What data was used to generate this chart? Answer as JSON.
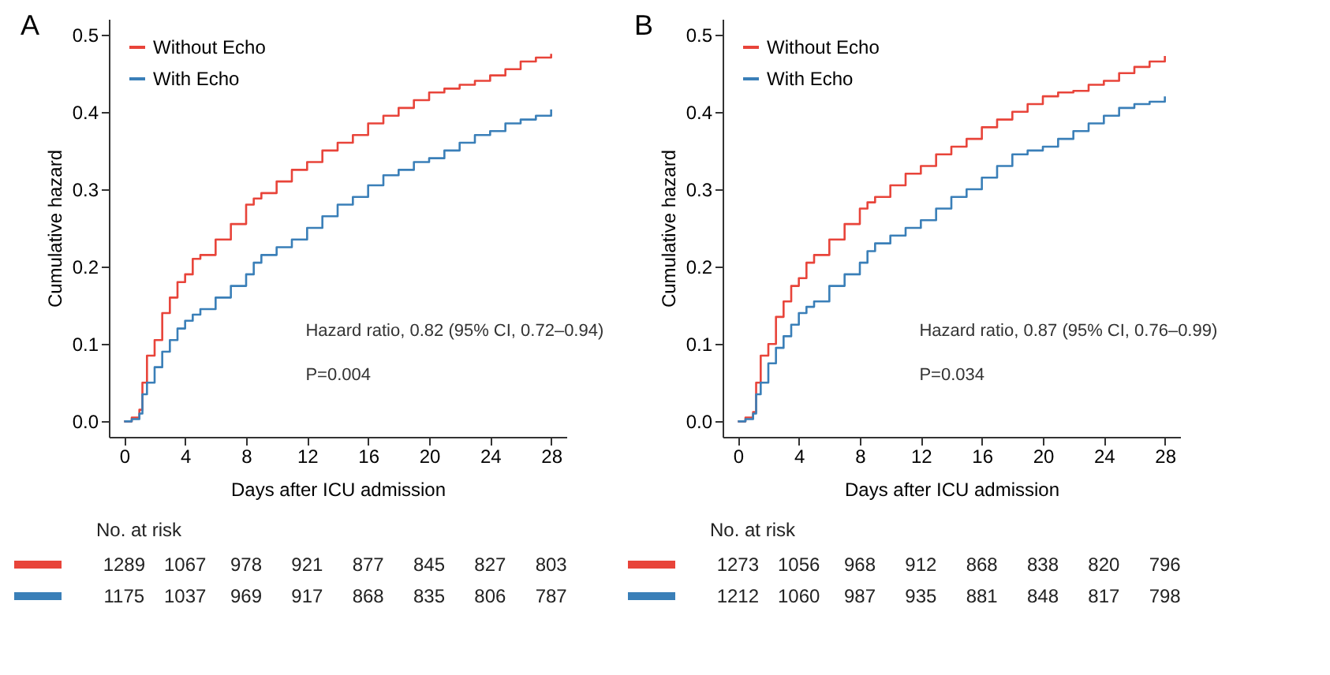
{
  "chart_data": [
    {
      "type": "step",
      "title": "A",
      "xlabel": "Days after ICU admission",
      "ylabel": "Cumulative hazard",
      "xlim": [
        -1,
        29
      ],
      "ylim": [
        -0.02,
        0.52
      ],
      "xticks": [
        0,
        4,
        8,
        12,
        16,
        20,
        24,
        28
      ],
      "yticks": [
        {
          "value": 0,
          "label": "0.0"
        },
        0.1,
        0.2,
        0.3,
        0.4,
        0.5
      ],
      "grid": false,
      "legend": "top left",
      "annotations": [
        "Hazard ratio, 0.82 (95% CI, 0.72–0.94)",
        "P=0.004",
        "No. at risk",
        "1289 1067 978 921 877 845 827 803",
        "1175 1037 969 917 868 835 806 787"
      ],
      "x": [
        0,
        0.5,
        1,
        1.2,
        1.5,
        2,
        2.5,
        3,
        3.5,
        4,
        4.5,
        5,
        6,
        7,
        8,
        8.5,
        9,
        10,
        11,
        12,
        13,
        14,
        15,
        16,
        17,
        18,
        19,
        20,
        21,
        22,
        23,
        24,
        25,
        26,
        27,
        28
      ],
      "series": [
        {
          "name": "Without Echo",
          "color": "#e8443a",
          "values": [
            0,
            0.005,
            0.015,
            0.05,
            0.085,
            0.105,
            0.14,
            0.16,
            0.18,
            0.19,
            0.21,
            0.215,
            0.235,
            0.255,
            0.28,
            0.288,
            0.295,
            0.31,
            0.325,
            0.335,
            0.35,
            0.36,
            0.37,
            0.385,
            0.395,
            0.405,
            0.415,
            0.425,
            0.43,
            0.435,
            0.44,
            0.447,
            0.455,
            0.465,
            0.47,
            0.475
          ]
        },
        {
          "name": "With Echo",
          "color": "#3a7fb8",
          "values": [
            0,
            0.003,
            0.01,
            0.035,
            0.05,
            0.07,
            0.09,
            0.105,
            0.12,
            0.13,
            0.138,
            0.145,
            0.16,
            0.175,
            0.19,
            0.205,
            0.215,
            0.225,
            0.235,
            0.25,
            0.265,
            0.28,
            0.29,
            0.305,
            0.318,
            0.325,
            0.335,
            0.34,
            0.35,
            0.36,
            0.37,
            0.375,
            0.385,
            0.39,
            0.395,
            0.403
          ]
        }
      ]
    },
    {
      "type": "step",
      "title": "B",
      "xlabel": "Days after ICU admission",
      "ylabel": "Cumulative hazard",
      "xlim": [
        -1,
        29
      ],
      "ylim": [
        -0.02,
        0.52
      ],
      "xticks": [
        0,
        4,
        8,
        12,
        16,
        20,
        24,
        28
      ],
      "yticks": [
        {
          "value": 0,
          "label": "0.0"
        },
        0.1,
        0.2,
        0.3,
        0.4,
        0.5
      ],
      "grid": false,
      "legend": "top left",
      "annotations": [
        "Hazard ratio, 0.87 (95% CI, 0.76–0.99)",
        "P=0.034",
        "No. at risk",
        "1273 1056 968 912 868 838 820 796",
        "1212 1060 987 935 881 848 817 798"
      ],
      "x": [
        0,
        0.5,
        1,
        1.2,
        1.5,
        2,
        2.5,
        3,
        3.5,
        4,
        4.5,
        5,
        6,
        7,
        8,
        8.5,
        9,
        10,
        11,
        12,
        13,
        14,
        15,
        16,
        17,
        18,
        19,
        20,
        21,
        22,
        23,
        24,
        25,
        26,
        27,
        28
      ],
      "series": [
        {
          "name": "Without Echo",
          "color": "#e8443a",
          "values": [
            0,
            0.005,
            0.012,
            0.05,
            0.085,
            0.1,
            0.135,
            0.155,
            0.175,
            0.185,
            0.205,
            0.215,
            0.235,
            0.255,
            0.275,
            0.283,
            0.29,
            0.305,
            0.32,
            0.33,
            0.345,
            0.355,
            0.365,
            0.38,
            0.39,
            0.4,
            0.41,
            0.42,
            0.425,
            0.427,
            0.435,
            0.44,
            0.45,
            0.458,
            0.465,
            0.472
          ]
        },
        {
          "name": "With Echo",
          "color": "#3a7fb8",
          "values": [
            0,
            0.003,
            0.01,
            0.035,
            0.05,
            0.075,
            0.095,
            0.11,
            0.125,
            0.14,
            0.148,
            0.155,
            0.175,
            0.19,
            0.205,
            0.22,
            0.23,
            0.24,
            0.25,
            0.26,
            0.275,
            0.29,
            0.3,
            0.315,
            0.33,
            0.345,
            0.35,
            0.355,
            0.365,
            0.375,
            0.385,
            0.395,
            0.405,
            0.41,
            0.413,
            0.42
          ]
        }
      ]
    }
  ]
}
